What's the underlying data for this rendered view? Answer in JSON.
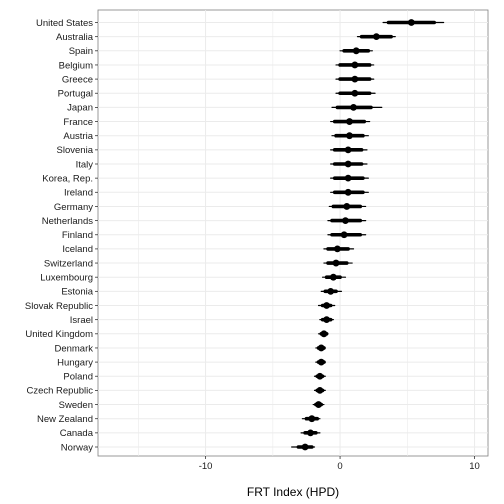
{
  "chart_data": {
    "type": "forest",
    "title": "",
    "xlabel": "FRT Index (HPD)",
    "ylabel": "",
    "xlim": [
      -18,
      11
    ],
    "xticks": [
      -10,
      0,
      10
    ],
    "grid": true,
    "legend": "none",
    "colors": {
      "mark": "#000000",
      "panel": "#ffffff",
      "grid": "#ebebeb",
      "border": "#7f7f7f"
    },
    "categories": [
      "United States",
      "Australia",
      "Spain",
      "Belgium",
      "Greece",
      "Portugal",
      "Japan",
      "France",
      "Austria",
      "Slovenia",
      "Italy",
      "Korea, Rep.",
      "Ireland",
      "Germany",
      "Netherlands",
      "Finland",
      "Iceland",
      "Switzerland",
      "Luxembourg",
      "Estonia",
      "Slovak Republic",
      "Israel",
      "United Kingdom",
      "Denmark",
      "Hungary",
      "Poland",
      "Czech Republic",
      "Sweden",
      "New Zealand",
      "Canada",
      "Norway"
    ],
    "estimate": [
      5.3,
      2.7,
      1.2,
      1.1,
      1.1,
      1.1,
      1.0,
      0.7,
      0.7,
      0.6,
      0.6,
      0.6,
      0.6,
      0.5,
      0.4,
      0.3,
      -0.2,
      -0.3,
      -0.5,
      -0.7,
      -1.0,
      -1.0,
      -1.2,
      -1.4,
      -1.4,
      -1.5,
      -1.5,
      -1.6,
      -2.1,
      -2.2,
      -2.6
    ],
    "inner_low": [
      3.6,
      1.6,
      0.3,
      0.0,
      0.0,
      0.0,
      -0.2,
      -0.4,
      -0.3,
      -0.4,
      -0.4,
      -0.4,
      -0.4,
      -0.5,
      -0.6,
      -0.6,
      -0.9,
      -0.9,
      -1.0,
      -1.1,
      -1.3,
      -1.3,
      -1.4,
      -1.6,
      -1.6,
      -1.7,
      -1.7,
      -1.8,
      -2.5,
      -2.6,
      -3.1
    ],
    "inner_high": [
      7.0,
      3.8,
      2.1,
      2.2,
      2.2,
      2.2,
      2.3,
      1.8,
      1.7,
      1.6,
      1.6,
      1.7,
      1.7,
      1.5,
      1.5,
      1.5,
      0.6,
      0.5,
      0.0,
      -0.3,
      -0.7,
      -0.7,
      -1.0,
      -1.2,
      -1.2,
      -1.3,
      -1.3,
      -1.4,
      -1.7,
      -1.8,
      -2.1
    ],
    "outer_low": [
      3.2,
      1.3,
      0.0,
      -0.3,
      -0.3,
      -0.3,
      -0.6,
      -0.7,
      -0.6,
      -0.7,
      -0.7,
      -0.7,
      -0.7,
      -0.8,
      -0.9,
      -0.9,
      -1.2,
      -1.2,
      -1.3,
      -1.4,
      -1.6,
      -1.5,
      -1.6,
      -1.8,
      -1.8,
      -1.9,
      -1.9,
      -2.0,
      -2.8,
      -2.9,
      -3.6
    ],
    "outer_high": [
      7.7,
      4.1,
      2.4,
      2.5,
      2.5,
      2.6,
      3.1,
      2.2,
      2.1,
      2.0,
      2.0,
      2.1,
      2.1,
      1.9,
      1.9,
      1.9,
      1.0,
      0.9,
      0.4,
      0.1,
      -0.4,
      -0.5,
      -0.9,
      -1.1,
      -1.1,
      -1.1,
      -1.1,
      -1.2,
      -1.5,
      -1.5,
      -1.9
    ]
  }
}
